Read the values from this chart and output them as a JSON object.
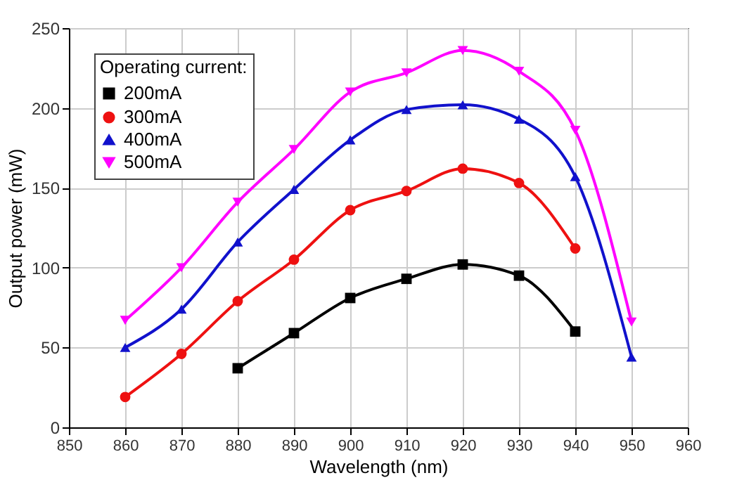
{
  "chart_data": {
    "type": "line",
    "xlabel": "Wavelength (nm)",
    "ylabel": "Output power (mW)",
    "legend_title": "Operating current:",
    "legend": "top left",
    "grid": true,
    "xlim": [
      850,
      960
    ],
    "xticks": [
      850,
      860,
      870,
      880,
      890,
      900,
      910,
      920,
      930,
      940,
      950,
      960
    ],
    "ylim": [
      0,
      250
    ],
    "yticks": [
      0,
      50,
      100,
      150,
      200,
      250
    ],
    "series": [
      {
        "name": "200mA",
        "color": "#000000",
        "marker": "square",
        "x": [
          880,
          890,
          900,
          910,
          920,
          930,
          940
        ],
        "values": [
          37,
          59,
          81,
          93,
          102,
          95,
          60
        ]
      },
      {
        "name": "300mA",
        "color": "#ee1111",
        "marker": "circle",
        "x": [
          860,
          870,
          880,
          890,
          900,
          910,
          920,
          930,
          940
        ],
        "values": [
          19,
          46,
          79,
          105,
          136,
          148,
          162,
          153,
          112
        ]
      },
      {
        "name": "400mA",
        "color": "#1111cc",
        "marker": "triangle",
        "x": [
          860,
          870,
          880,
          890,
          900,
          910,
          920,
          930,
          940,
          950
        ],
        "values": [
          50,
          74,
          116,
          149,
          180,
          199,
          202,
          193,
          157,
          44
        ]
      },
      {
        "name": "500mA",
        "color": "#ff00ff",
        "marker": "triangle_down",
        "x": [
          860,
          870,
          880,
          890,
          900,
          910,
          920,
          930,
          940,
          950
        ],
        "values": [
          67,
          100,
          141,
          174,
          210,
          222,
          236,
          223,
          186,
          66
        ]
      }
    ]
  }
}
